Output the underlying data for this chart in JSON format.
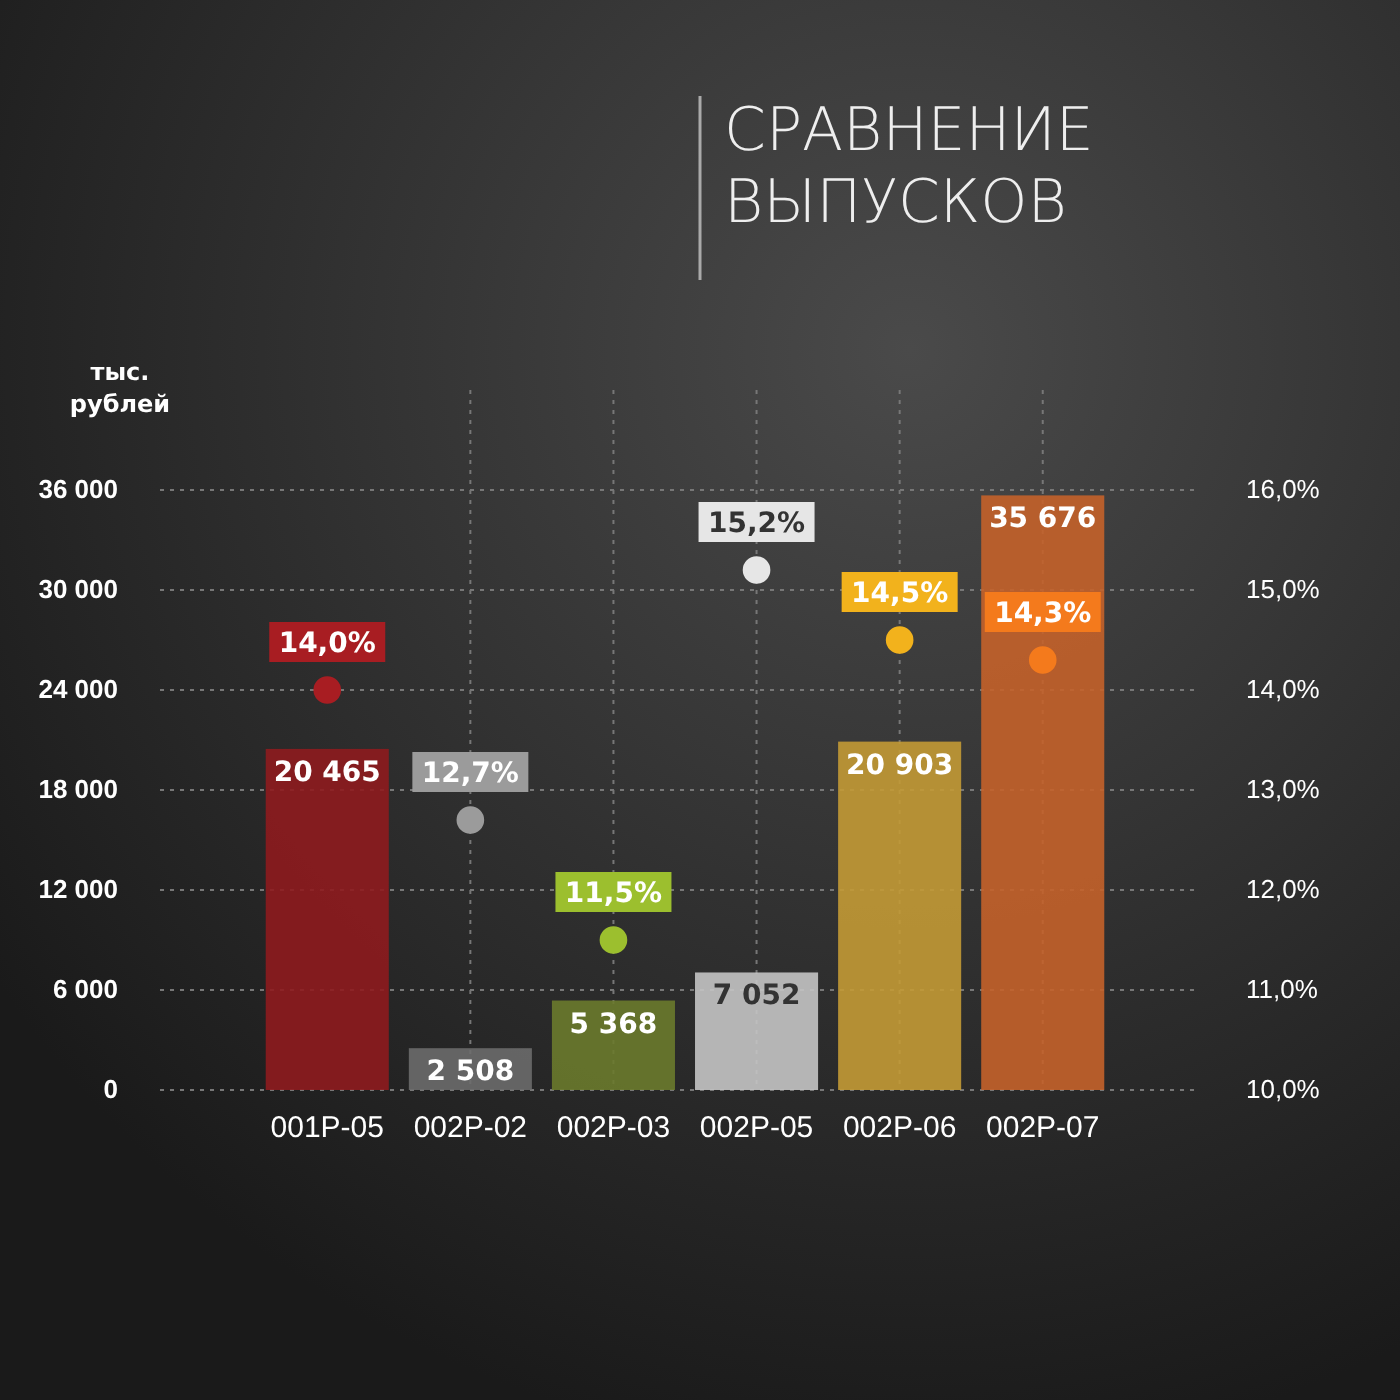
{
  "chart_data": {
    "type": "bar",
    "title": "СРАВНЕНИЕ ВЫПУСКОВ",
    "ylabel": "тыс. рублей",
    "categories": [
      "001P-05",
      "002P-02",
      "002P-03",
      "002P-05",
      "002P-06",
      "002P-07"
    ],
    "series": [
      {
        "colors": [
          "#8e1b1e",
          "#6b6b6b",
          "#6a7a2c",
          "#c4c4c4",
          "#c39a35",
          "#c4622a"
        ],
        "values": [
          20465,
          2508,
          5368,
          7052,
          20903,
          35676
        ],
        "value_labels": [
          "20 465",
          "2 508",
          "5 368",
          "7 052",
          "20 903",
          "35 676"
        ]
      },
      {
        "type": "scatter",
        "axis": "y2",
        "colors": [
          "#a81d22",
          "#9b9b9b",
          "#9cbf2e",
          "#e6e6e6",
          "#f2b21c",
          "#f47a1c"
        ],
        "values": [
          14.0,
          12.7,
          11.5,
          15.2,
          14.5,
          14.3
        ],
        "value_labels": [
          "14,0%",
          "12,7%",
          "11,5%",
          "15,2%",
          "14,5%",
          "14,3%"
        ]
      }
    ],
    "ylim": [
      0,
      36000
    ],
    "yticks": [
      {
        "value": 0,
        "label": "0"
      },
      {
        "value": 6000,
        "label": "6 000"
      },
      {
        "value": 12000,
        "label": "12 000"
      },
      {
        "value": 18000,
        "label": "18 000"
      },
      {
        "value": 24000,
        "label": "24 000"
      },
      {
        "value": 30000,
        "label": "30 000"
      },
      {
        "value": 36000,
        "label": "36 000"
      }
    ],
    "y2lim": [
      10,
      16
    ],
    "y2ticks": [
      {
        "value": 10,
        "label": "10,0%"
      },
      {
        "value": 11,
        "label": "11,0%"
      },
      {
        "value": 12,
        "label": "12,0%"
      },
      {
        "value": 13,
        "label": "13,0%"
      },
      {
        "value": 14,
        "label": "14,0%"
      },
      {
        "value": 15,
        "label": "15,0%"
      },
      {
        "value": 16,
        "label": "16,0%"
      }
    ],
    "grid": true,
    "marker": "circle"
  }
}
